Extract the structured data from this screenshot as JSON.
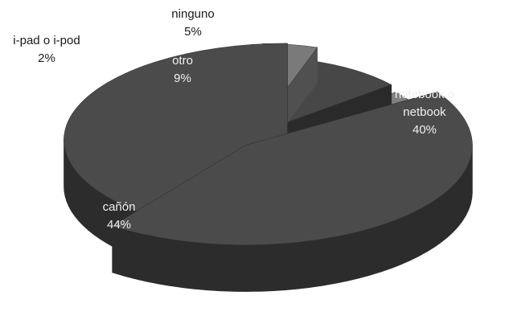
{
  "chart_data": {
    "type": "pie",
    "title": "",
    "slices": [
      {
        "label": "notebook o netbook",
        "label_lines": [
          "notebook o",
          "netbook"
        ],
        "value": 40,
        "value_label": "40%",
        "color": "#4b4b4b",
        "side": "#2c2c2c",
        "text_color": "#f0f0f0"
      },
      {
        "label": "cañón",
        "label_lines": [
          "cañón"
        ],
        "value": 44,
        "value_label": "44%",
        "color": "#4b4b4b",
        "side": "#2c2c2c",
        "text_color": "#f0f0f0"
      },
      {
        "label": "i-pad o i-pod",
        "label_lines": [
          "i-pad o i-pod"
        ],
        "value": 2,
        "value_label": "2%",
        "color": "#808080",
        "side": "#555555",
        "text_color": "#1a1a1a"
      },
      {
        "label": "otro",
        "label_lines": [
          "otro"
        ],
        "value": 9,
        "value_label": "9%",
        "color": "#474747",
        "side": "#2a2a2a",
        "text_color": "#f0f0f0"
      },
      {
        "label": "ninguno",
        "label_lines": [
          "ninguno"
        ],
        "value": 5,
        "value_label": "5%",
        "color": "#7a7a7a",
        "side": "#505050",
        "text_color": "#1a1a1a"
      }
    ]
  }
}
